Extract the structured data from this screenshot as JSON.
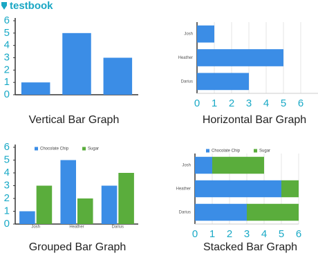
{
  "logo": "testbook",
  "chart_data": [
    {
      "type": "bar",
      "title": "Vertical Bar Graph",
      "categories": [
        null,
        null,
        null
      ],
      "values": [
        1,
        5,
        3
      ],
      "color": "#3b8de6",
      "ylim": [
        0,
        6
      ],
      "yticks": [
        0,
        1,
        2,
        3,
        4,
        5,
        6
      ],
      "grid": false
    },
    {
      "type": "barh",
      "title": "Horizontal Bar Graph",
      "categories": [
        "Josh",
        "Heather",
        "Darius"
      ],
      "values": [
        1,
        5,
        3
      ],
      "color": "#3b8de6",
      "xlim": [
        0,
        7
      ],
      "xticks": [
        0,
        1,
        2,
        3,
        4,
        5,
        6
      ],
      "grid": true
    },
    {
      "type": "grouped",
      "title": "Grouped Bar Graph",
      "categories": [
        "Josh",
        "Heather",
        "Darius"
      ],
      "series": [
        {
          "name": "Chocolate Chip",
          "color": "#3b8de6",
          "values": [
            1,
            5,
            3
          ]
        },
        {
          "name": "Sugar",
          "color": "#5aad3c",
          "values": [
            3,
            2,
            4
          ]
        }
      ],
      "ylim": [
        0,
        6
      ],
      "yticks": [
        0,
        1,
        2,
        3,
        4,
        5,
        6
      ],
      "grid": false,
      "legend": "top"
    },
    {
      "type": "stacked",
      "title": "Stacked Bar Graph",
      "categories": [
        "Josh",
        "Heather",
        "Darius"
      ],
      "series": [
        {
          "name": "Chocolate Chip",
          "color": "#3b8de6",
          "values": [
            1,
            5,
            3
          ]
        },
        {
          "name": "Sugar",
          "color": "#5aad3c",
          "values": [
            3,
            1,
            3
          ]
        }
      ],
      "xlim": [
        0,
        6
      ],
      "xticks": [
        0,
        1,
        2,
        3,
        4,
        5,
        6
      ],
      "grid": true,
      "legend": "top"
    }
  ]
}
